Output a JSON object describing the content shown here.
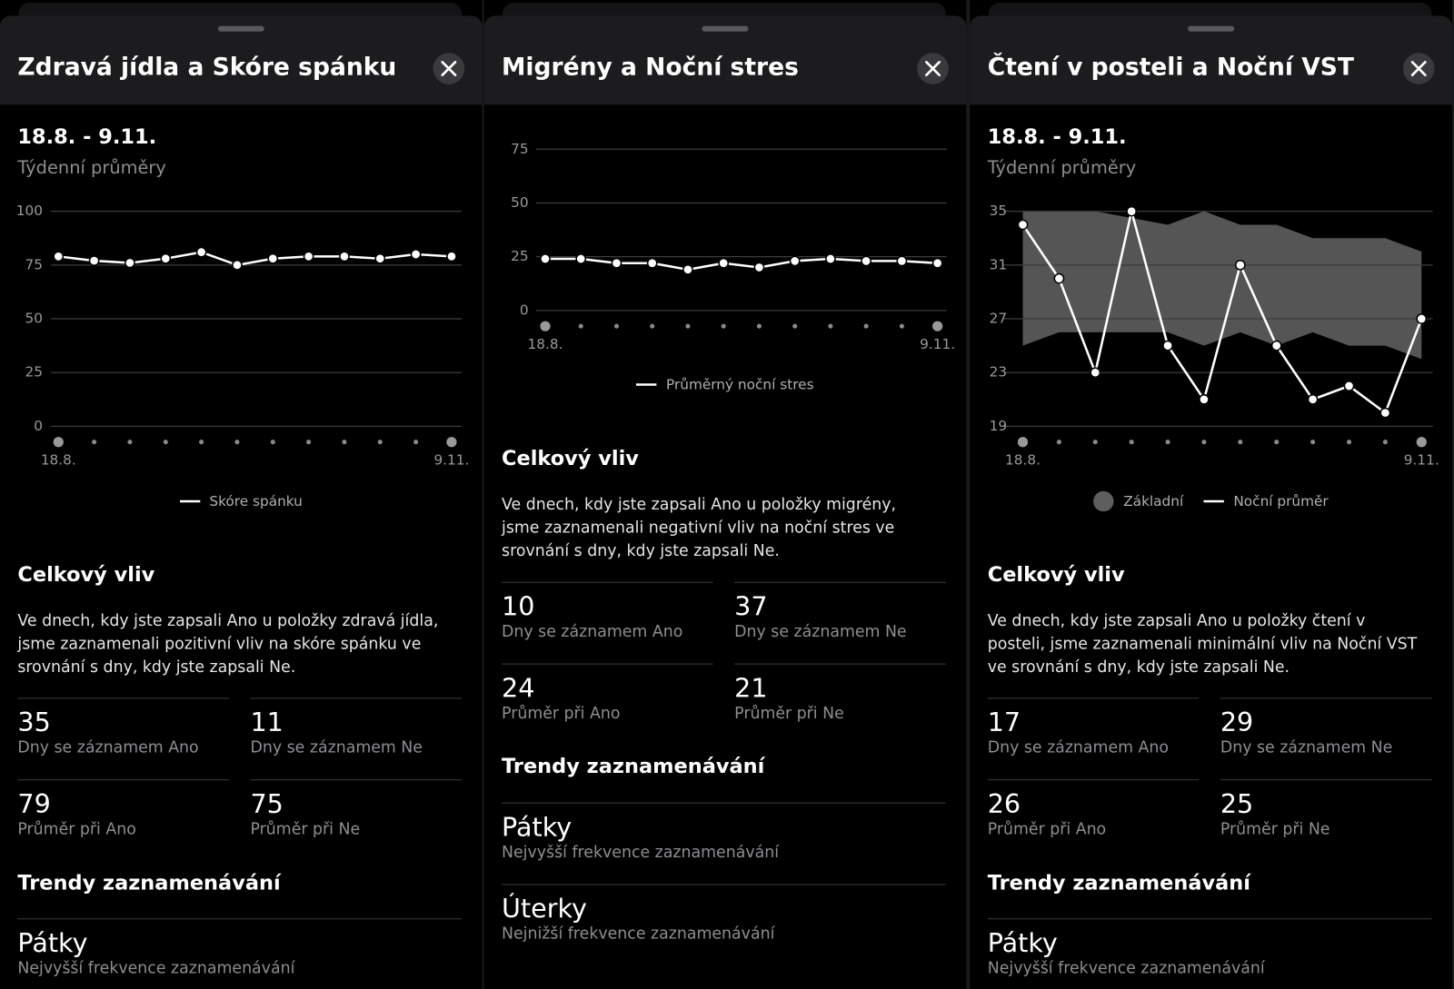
{
  "panels": [
    {
      "title": "Zdravá jídla a Skóre spánku",
      "date_range": "18.8. - 9.11.",
      "subtitle": "Týdenní průměry",
      "chart": {
        "type": "line",
        "categories": [
          "18.8.",
          null,
          null,
          null,
          null,
          null,
          null,
          null,
          null,
          null,
          null,
          "9.11."
        ],
        "ylim": [
          0,
          100
        ],
        "yticks": [
          0,
          25,
          50,
          75,
          100
        ],
        "grid": true,
        "series": [
          {
            "name": "Skóre spánku",
            "type": "line",
            "color": "#ffffff",
            "values": [
              79,
              77,
              76,
              78,
              81,
              75,
              78,
              79,
              79,
              78,
              80,
              79
            ]
          }
        ]
      },
      "impact": {
        "heading": "Celkový vliv",
        "text": "Ve dnech, kdy jste zapsali Ano u položky zdravá jídla, jsme zaznamenali pozitivní vliv na skóre spánku ve srovnání s dny, kdy jste zapsali Ne.",
        "stats": [
          {
            "value": 35,
            "label": "Dny se záznamem Ano"
          },
          {
            "value": 11,
            "label": "Dny se záznamem Ne"
          },
          {
            "value": 79,
            "label": "Průměr při Ano"
          },
          {
            "value": 75,
            "label": "Průměr při Ne"
          }
        ]
      },
      "trends": {
        "heading": "Trendy zaznamenávání",
        "items": [
          {
            "title": "Pátky",
            "subtitle": "Nejvyšší frekvence zaznamenávání"
          }
        ]
      }
    },
    {
      "title": "Migrény a Noční stres",
      "chart": {
        "type": "line",
        "categories": [
          "18.8.",
          null,
          null,
          null,
          null,
          null,
          null,
          null,
          null,
          null,
          null,
          "9.11."
        ],
        "ylim": [
          0,
          75
        ],
        "yticks": [
          0,
          25,
          50,
          75
        ],
        "grid": true,
        "series": [
          {
            "name": "Průměrný noční stres",
            "type": "line",
            "color": "#ffffff",
            "values": [
              24,
              24,
              22,
              22,
              19,
              22,
              20,
              23,
              24,
              23,
              23,
              22
            ]
          }
        ]
      },
      "impact": {
        "heading": "Celkový vliv",
        "text": "Ve dnech, kdy jste zapsali Ano u položky migrény, jsme zaznamenali negativní vliv na noční stres ve srovnání s dny, kdy jste zapsali Ne.",
        "stats": [
          {
            "value": 10,
            "label": "Dny se záznamem Ano"
          },
          {
            "value": 37,
            "label": "Dny se záznamem Ne"
          },
          {
            "value": 24,
            "label": "Průměr při Ano"
          },
          {
            "value": 21,
            "label": "Průměr při Ne"
          }
        ]
      },
      "trends": {
        "heading": "Trendy zaznamenávání",
        "items": [
          {
            "title": "Pátky",
            "subtitle": "Nejvyšší frekvence zaznamenávání"
          },
          {
            "title": "Úterky",
            "subtitle": "Nejnižší frekvence zaznamenávání"
          }
        ]
      }
    },
    {
      "title": "Čtení v posteli a Noční VST",
      "date_range": "18.8. - 9.11.",
      "subtitle": "Týdenní průměry",
      "chart": {
        "type": "line",
        "categories": [
          "18.8.",
          null,
          null,
          null,
          null,
          null,
          null,
          null,
          null,
          null,
          null,
          "9.11."
        ],
        "ylim": [
          19,
          35
        ],
        "yticks": [
          19,
          23,
          27,
          31,
          35
        ],
        "grid": true,
        "series": [
          {
            "name": "Základní",
            "type": "range",
            "color": "#555555",
            "low": [
              25,
              26,
              26,
              26,
              26,
              25,
              26,
              25,
              26,
              25,
              25,
              24
            ],
            "high": [
              35,
              35,
              35,
              34.5,
              34,
              35,
              34,
              34,
              33,
              33,
              33,
              32
            ]
          },
          {
            "name": "Noční průměr",
            "type": "line",
            "color": "#ffffff",
            "values": [
              34,
              30,
              23,
              35,
              25,
              21,
              31,
              25,
              21,
              22,
              20,
              27
            ]
          }
        ]
      },
      "impact": {
        "heading": "Celkový vliv",
        "text": "Ve dnech, kdy jste zapsali Ano u položky čtení v posteli, jsme zaznamenali minimální vliv na Noční VST ve srovnání s dny, kdy jste zapsali Ne.",
        "stats": [
          {
            "value": 17,
            "label": "Dny se záznamem Ano"
          },
          {
            "value": 29,
            "label": "Dny se záznamem Ne"
          },
          {
            "value": 26,
            "label": "Průměr při Ano"
          },
          {
            "value": 25,
            "label": "Průměr při Ne"
          }
        ]
      },
      "trends": {
        "heading": "Trendy zaznamenávání",
        "items": [
          {
            "title": "Pátky",
            "subtitle": "Nejvyšší frekvence zaznamenávání"
          }
        ]
      }
    }
  ]
}
